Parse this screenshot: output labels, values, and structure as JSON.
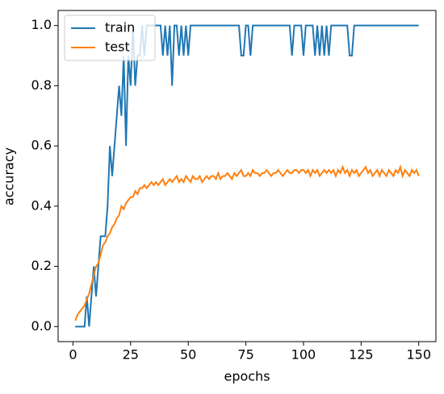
{
  "chart_data": {
    "type": "line",
    "x_label": "epochs",
    "y_label": "accuracy",
    "x": [
      1,
      2,
      3,
      4,
      5,
      6,
      7,
      8,
      9,
      10,
      11,
      12,
      13,
      14,
      15,
      16,
      17,
      18,
      19,
      20,
      21,
      22,
      23,
      24,
      25,
      26,
      27,
      28,
      29,
      30,
      31,
      32,
      33,
      34,
      35,
      36,
      37,
      38,
      39,
      40,
      41,
      42,
      43,
      44,
      45,
      46,
      47,
      48,
      49,
      50,
      51,
      52,
      53,
      54,
      55,
      56,
      57,
      58,
      59,
      60,
      61,
      62,
      63,
      64,
      65,
      66,
      67,
      68,
      69,
      70,
      71,
      72,
      73,
      74,
      75,
      76,
      77,
      78,
      79,
      80,
      81,
      82,
      83,
      84,
      85,
      86,
      87,
      88,
      89,
      90,
      91,
      92,
      93,
      94,
      95,
      96,
      97,
      98,
      99,
      100,
      101,
      102,
      103,
      104,
      105,
      106,
      107,
      108,
      109,
      110,
      111,
      112,
      113,
      114,
      115,
      116,
      117,
      118,
      119,
      120,
      121,
      122,
      123,
      124,
      125,
      126,
      127,
      128,
      129,
      130,
      131,
      132,
      133,
      134,
      135,
      136,
      137,
      138,
      139,
      140,
      141,
      142,
      143,
      144,
      145,
      146,
      147,
      148,
      149,
      150
    ],
    "series": [
      {
        "name": "train",
        "color": "#1f77b4",
        "values": [
          0,
          0,
          0,
          0,
          0,
          0.1,
          0,
          0.1,
          0.2,
          0.1,
          0.2,
          0.3,
          0.3,
          0.3,
          0.4,
          0.6,
          0.5,
          0.6,
          0.7,
          0.8,
          0.7,
          0.9,
          0.6,
          0.9,
          0.8,
          1,
          0.8,
          0.9,
          0.9,
          1,
          0.9,
          1,
          1,
          1,
          1,
          1,
          1,
          1,
          0.9,
          1,
          0.9,
          1,
          0.8,
          1,
          1,
          0.9,
          1,
          0.9,
          1,
          0.9,
          1,
          1,
          1,
          1,
          1,
          1,
          1,
          1,
          1,
          1,
          1,
          1,
          1,
          1,
          1,
          1,
          1,
          1,
          1,
          1,
          1,
          1,
          0.9,
          0.9,
          1,
          1,
          0.9,
          1,
          1,
          1,
          1,
          1,
          1,
          1,
          1,
          1,
          1,
          1,
          1,
          1,
          1,
          1,
          1,
          1,
          0.9,
          1,
          1,
          1,
          1,
          0.9,
          1,
          1,
          1,
          1,
          0.9,
          1,
          0.9,
          1,
          0.9,
          1,
          0.9,
          1,
          1,
          1,
          1,
          1,
          1,
          1,
          1,
          0.9,
          0.9,
          1,
          1,
          1,
          1,
          1,
          1,
          1,
          1,
          1,
          1,
          1,
          1,
          1,
          1,
          1,
          1,
          1,
          1,
          1,
          1,
          1,
          1,
          1,
          1,
          1,
          1,
          1,
          1,
          1
        ]
      },
      {
        "name": "test",
        "color": "#ff7f0e",
        "values": [
          0.02,
          0.04,
          0.05,
          0.06,
          0.07,
          0.09,
          0.11,
          0.14,
          0.17,
          0.2,
          0.21,
          0.24,
          0.27,
          0.28,
          0.3,
          0.31,
          0.33,
          0.34,
          0.36,
          0.37,
          0.4,
          0.39,
          0.41,
          0.42,
          0.43,
          0.43,
          0.45,
          0.44,
          0.46,
          0.46,
          0.47,
          0.46,
          0.47,
          0.48,
          0.47,
          0.48,
          0.47,
          0.48,
          0.49,
          0.47,
          0.48,
          0.49,
          0.48,
          0.49,
          0.5,
          0.48,
          0.49,
          0.48,
          0.5,
          0.49,
          0.48,
          0.5,
          0.49,
          0.49,
          0.5,
          0.48,
          0.49,
          0.5,
          0.49,
          0.5,
          0.5,
          0.49,
          0.51,
          0.49,
          0.5,
          0.5,
          0.51,
          0.5,
          0.49,
          0.51,
          0.5,
          0.51,
          0.52,
          0.5,
          0.5,
          0.51,
          0.5,
          0.52,
          0.51,
          0.51,
          0.5,
          0.51,
          0.51,
          0.52,
          0.51,
          0.5,
          0.51,
          0.51,
          0.52,
          0.51,
          0.5,
          0.51,
          0.52,
          0.51,
          0.51,
          0.52,
          0.52,
          0.51,
          0.52,
          0.52,
          0.51,
          0.52,
          0.5,
          0.52,
          0.51,
          0.52,
          0.5,
          0.51,
          0.52,
          0.51,
          0.52,
          0.51,
          0.52,
          0.5,
          0.52,
          0.51,
          0.53,
          0.51,
          0.52,
          0.5,
          0.52,
          0.51,
          0.52,
          0.5,
          0.51,
          0.52,
          0.53,
          0.51,
          0.52,
          0.5,
          0.51,
          0.52,
          0.5,
          0.52,
          0.51,
          0.5,
          0.52,
          0.51,
          0.5,
          0.52,
          0.51,
          0.53,
          0.5,
          0.52,
          0.51,
          0.5,
          0.52,
          0.51,
          0.52,
          0.5
        ]
      }
    ],
    "xlim": [
      -6.45,
      157.45
    ],
    "ylim": [
      -0.05,
      1.05
    ],
    "xticks": [
      0,
      25,
      50,
      75,
      100,
      125,
      150
    ],
    "yticks": [
      {
        "value": 0,
        "label": "0.0"
      },
      {
        "value": 0.2,
        "label": "0.2"
      },
      {
        "value": 0.4,
        "label": "0.4"
      },
      {
        "value": 0.6,
        "label": "0.6"
      },
      {
        "value": 0.8,
        "label": "0.8"
      },
      {
        "value": 1,
        "label": "1.0"
      }
    ],
    "legend": "upper-left",
    "grid": false
  }
}
